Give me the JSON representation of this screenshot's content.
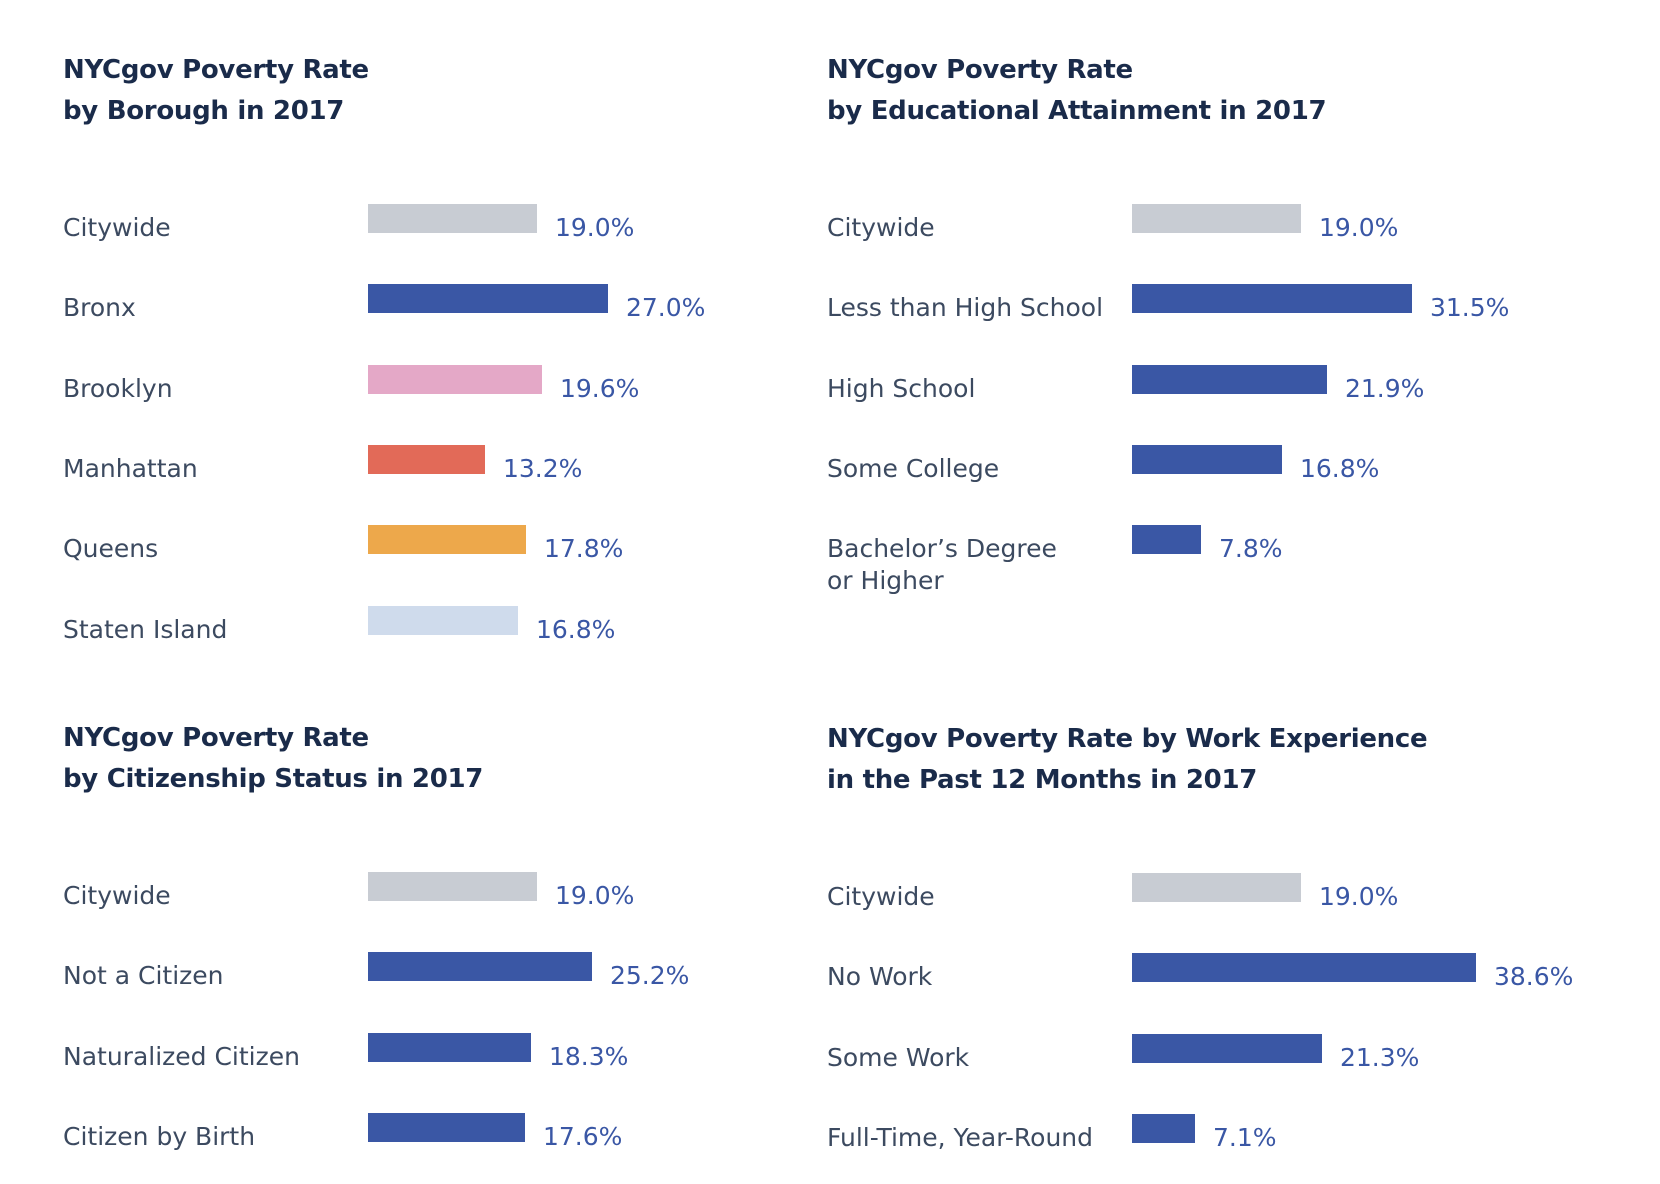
{
  "colors": {
    "citywide": "#c8ccd3",
    "primary": "#3a57a5",
    "brooklyn": "#e4a8c7",
    "manhattan": "#e26a58",
    "queens": "#eda84b",
    "staten_island": "#cfdbec",
    "title": "#1a2b4a",
    "label": "#3c4a60",
    "value": "#3a57a5"
  },
  "chart_data": [
    {
      "type": "bar",
      "orientation": "horizontal",
      "title_lines": [
        "NYCgov Poverty Rate",
        "by Borough in 2017"
      ],
      "categories": [
        "Citywide",
        "Bronx",
        "Brooklyn",
        "Manhattan",
        "Queens",
        "Staten Island"
      ],
      "values": [
        19.0,
        27.0,
        19.6,
        13.2,
        17.8,
        16.8
      ],
      "value_labels": [
        "19.0%",
        "27.0%",
        "19.6%",
        "13.2%",
        "17.8%",
        "16.8%"
      ],
      "bar_colors": [
        "citywide",
        "primary",
        "brooklyn",
        "manhattan",
        "queens",
        "staten_island"
      ],
      "unit": "%",
      "grid": false
    },
    {
      "type": "bar",
      "orientation": "horizontal",
      "title_lines": [
        "NYCgov Poverty Rate",
        "by Educational Attainment in 2017"
      ],
      "categories": [
        "Citywide",
        "Less than High School",
        "High School",
        "Some College",
        "Bachelor’s Degree\nor Higher"
      ],
      "values": [
        19.0,
        31.5,
        21.9,
        16.8,
        7.8
      ],
      "value_labels": [
        "19.0%",
        "31.5%",
        "21.9%",
        "16.8%",
        "7.8%"
      ],
      "bar_colors": [
        "citywide",
        "primary",
        "primary",
        "primary",
        "primary"
      ],
      "unit": "%",
      "grid": false
    },
    {
      "type": "bar",
      "orientation": "horizontal",
      "title_lines": [
        "NYCgov Poverty Rate",
        "by Citizenship Status in 2017"
      ],
      "categories": [
        "Citywide",
        "Not a Citizen",
        "Naturalized Citizen",
        "Citizen by Birth"
      ],
      "values": [
        19.0,
        25.2,
        18.3,
        17.6
      ],
      "value_labels": [
        "19.0%",
        "25.2%",
        "18.3%",
        "17.6%"
      ],
      "bar_colors": [
        "citywide",
        "primary",
        "primary",
        "primary"
      ],
      "unit": "%",
      "grid": false
    },
    {
      "type": "bar",
      "orientation": "horizontal",
      "title_lines": [
        "NYCgov Poverty Rate by Work Experience",
        "in the Past 12 Months in 2017"
      ],
      "categories": [
        "Citywide",
        "No Work",
        "Some Work",
        "Full-Time, Year-Round"
      ],
      "values": [
        19.0,
        38.6,
        21.3,
        7.1
      ],
      "value_labels": [
        "19.0%",
        "38.6%",
        "21.3%",
        "7.1%"
      ],
      "bar_colors": [
        "citywide",
        "primary",
        "primary",
        "primary"
      ],
      "unit": "%",
      "grid": false
    }
  ]
}
